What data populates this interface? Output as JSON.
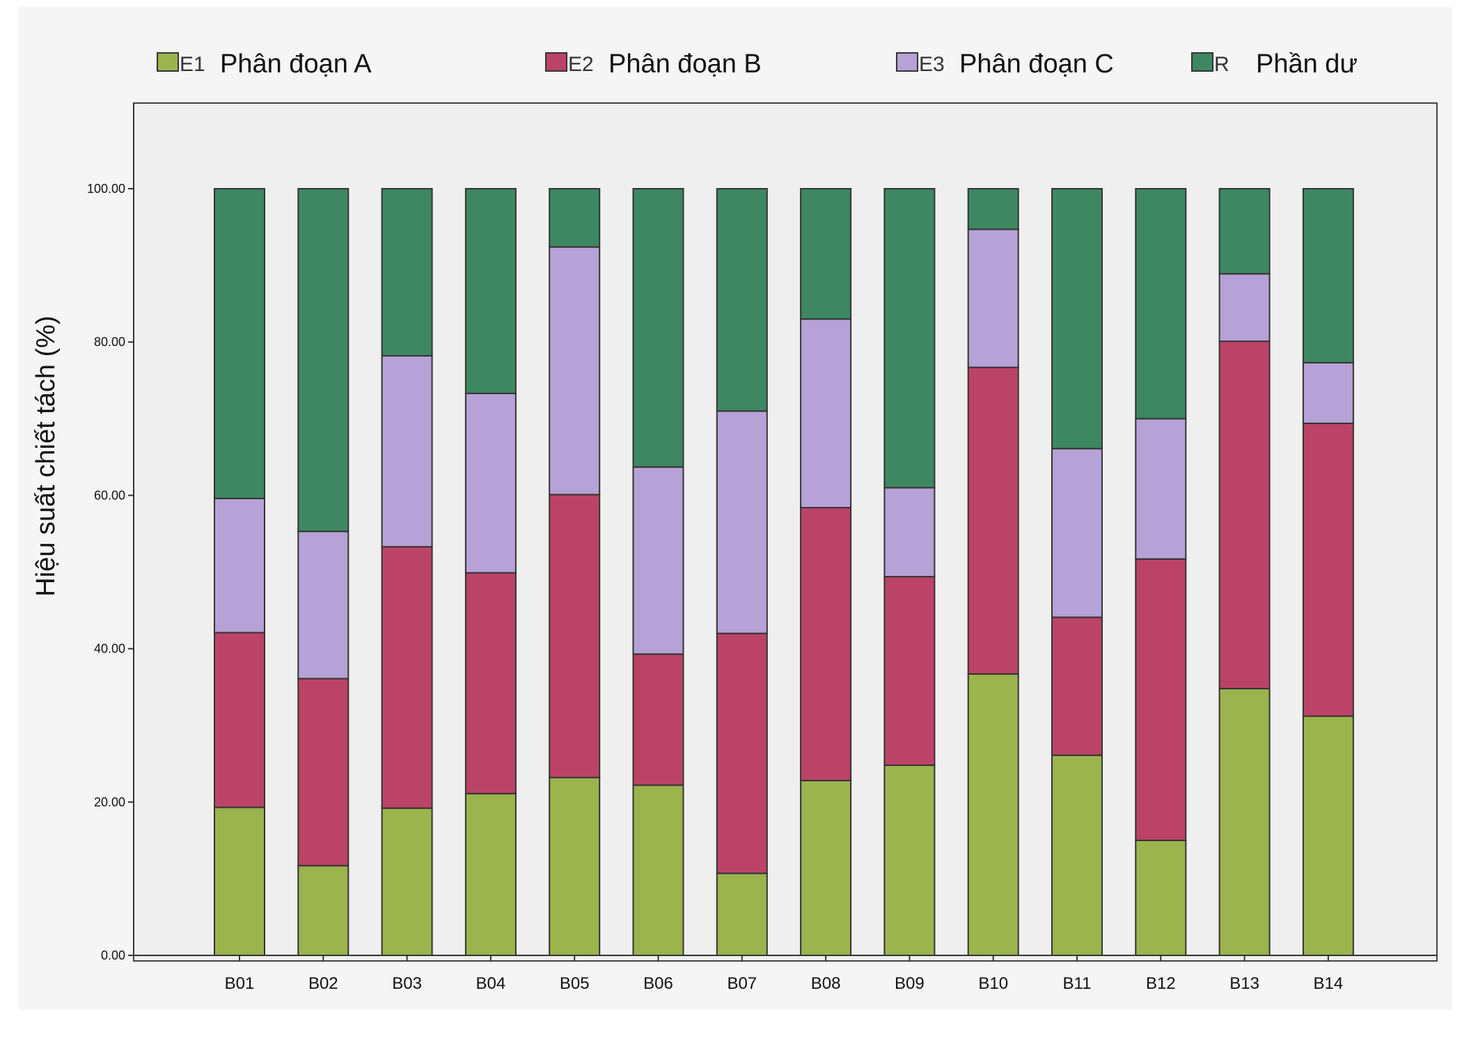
{
  "chart_data": {
    "type": "bar",
    "stacked": true,
    "title": "",
    "xlabel": "",
    "ylabel": "Hiệu suất chiết tách (%)",
    "ylim": [
      0,
      100
    ],
    "yticks": [
      "0.00",
      "20.00",
      "40.00",
      "60.00",
      "80.00",
      "100.00"
    ],
    "grid": false,
    "legend_position": "top",
    "categories": [
      "B01",
      "B02",
      "B03",
      "B04",
      "B05",
      "B06",
      "B07",
      "B08",
      "B09",
      "B10",
      "B11",
      "B12",
      "B13",
      "B14"
    ],
    "series": [
      {
        "code": "E1",
        "name": "Phân đoạn A",
        "color": "#9bb44e",
        "values": [
          19.3,
          11.7,
          19.2,
          21.1,
          23.2,
          22.2,
          10.7,
          22.8,
          24.8,
          36.7,
          26.1,
          15.0,
          34.8,
          31.2
        ]
      },
      {
        "code": "E2",
        "name": "Phân đoạn B",
        "color": "#bc4368",
        "values": [
          22.8,
          24.4,
          34.1,
          28.8,
          36.9,
          17.1,
          31.3,
          35.6,
          24.6,
          40.0,
          18.0,
          36.7,
          45.3,
          38.2
        ]
      },
      {
        "code": "E3",
        "name": "Phân đoạn C",
        "color": "#b6a2d6",
        "values": [
          17.5,
          19.2,
          24.9,
          23.4,
          32.3,
          24.4,
          29.0,
          24.6,
          11.6,
          18.0,
          22.0,
          18.3,
          8.8,
          7.9
        ]
      },
      {
        "code": "R",
        "name": "Phần dư",
        "color": "#3d8862",
        "values": [
          40.4,
          44.7,
          21.8,
          26.7,
          7.6,
          36.3,
          29.0,
          17.0,
          39.0,
          5.3,
          33.9,
          30.0,
          11.1,
          22.7
        ]
      }
    ],
    "colors": {
      "plot_background": "#efefef",
      "bar_outline": "#333333"
    }
  }
}
